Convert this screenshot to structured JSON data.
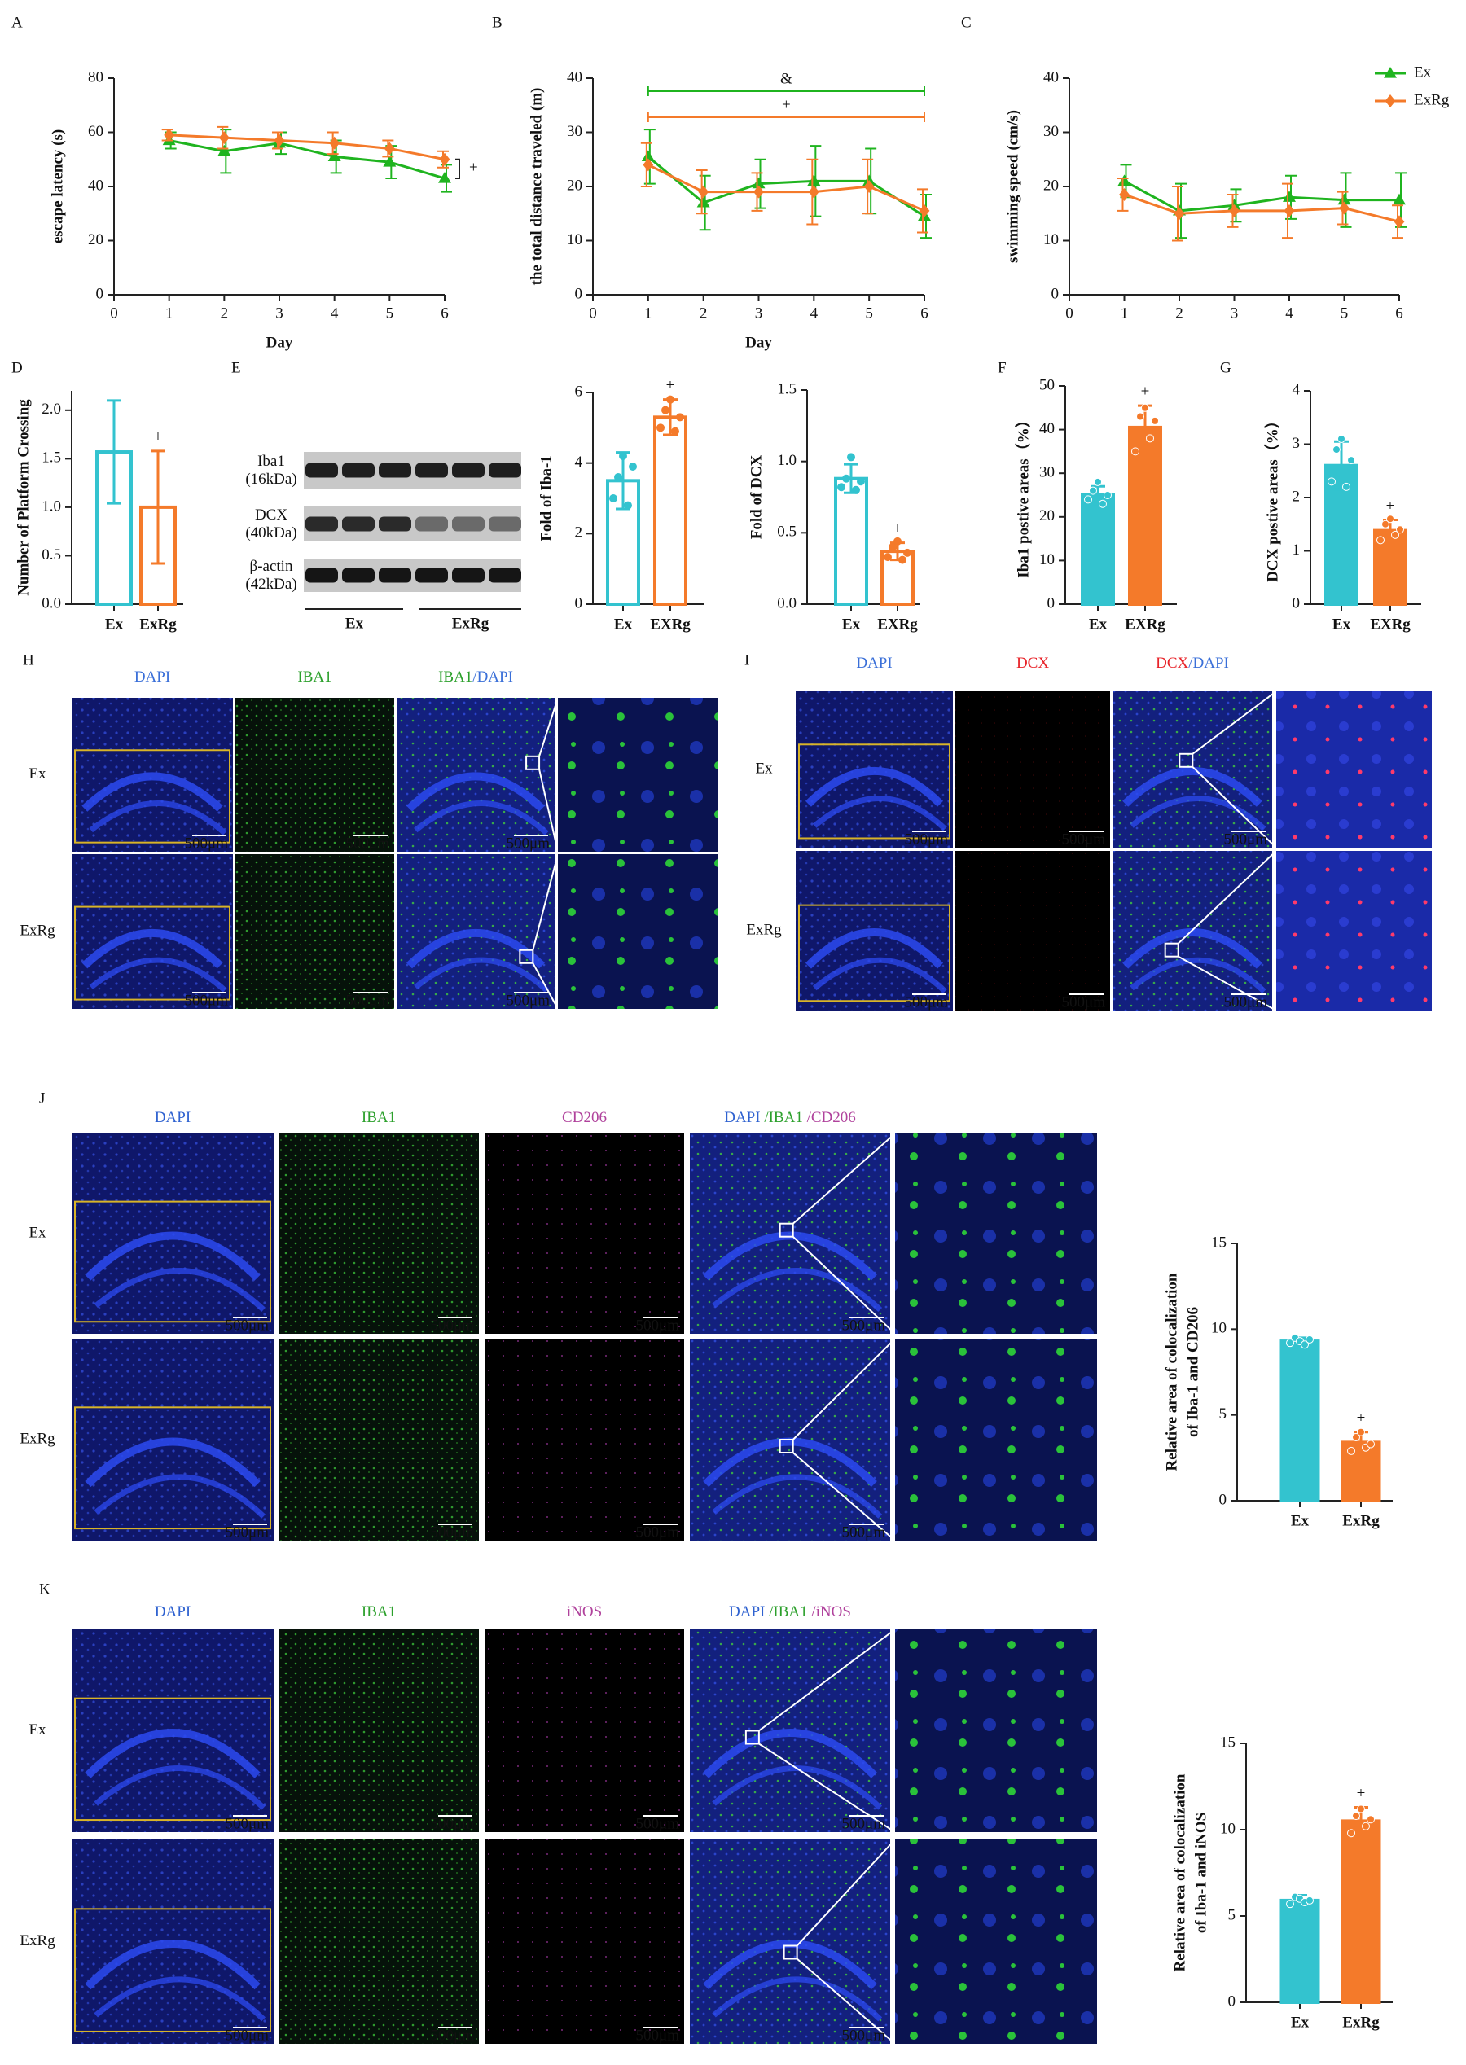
{
  "chart_data": [
    {
      "type": "line",
      "label": "A",
      "xlabel": "Day",
      "ylabel": "escape latency (s)",
      "x": [
        1,
        2,
        3,
        4,
        5,
        6
      ],
      "xlim": [
        0,
        6
      ],
      "xticks": [
        0,
        1,
        2,
        3,
        4,
        5,
        6
      ],
      "ylim": [
        0,
        80
      ],
      "yticks": [
        0,
        20,
        40,
        60,
        80
      ],
      "series": [
        {
          "name": "Ex",
          "color": "#1fb41f",
          "marker": "triangle",
          "values": [
            57,
            53,
            56,
            51,
            49,
            43
          ],
          "errors": [
            3,
            8,
            4,
            6,
            6,
            5
          ]
        },
        {
          "name": "ExRg",
          "color": "#f47a2a",
          "marker": "diamond",
          "values": [
            59,
            58,
            57,
            56,
            54,
            50
          ],
          "errors": [
            2,
            4,
            3,
            4,
            3,
            3
          ]
        }
      ],
      "annotation": "+"
    },
    {
      "type": "line",
      "label": "B",
      "xlabel": "Day",
      "ylabel": "the total distance traveled (m)",
      "x": [
        1,
        2,
        3,
        4,
        5,
        6
      ],
      "xlim": [
        0,
        6
      ],
      "xticks": [
        0,
        1,
        2,
        3,
        4,
        5,
        6
      ],
      "ylim": [
        0,
        40
      ],
      "yticks": [
        0,
        10,
        20,
        30,
        40
      ],
      "series": [
        {
          "name": "Ex",
          "color": "#1fb41f",
          "marker": "triangle",
          "values": [
            25.5,
            17,
            20.5,
            21,
            21,
            14.5
          ],
          "errors": [
            5,
            5,
            4.5,
            6.5,
            6,
            4
          ]
        },
        {
          "name": "ExRg",
          "color": "#f47a2a",
          "marker": "diamond",
          "values": [
            24,
            19,
            19,
            19,
            20,
            15.5
          ],
          "errors": [
            4,
            4,
            3.5,
            6,
            5,
            4
          ]
        }
      ],
      "annotations": [
        {
          "text": "&",
          "color": "#1fb41f"
        },
        {
          "text": "+",
          "color": "#f47a2a"
        }
      ]
    },
    {
      "type": "line",
      "label": "C",
      "ylabel": "swimming speed (cm/s)",
      "x": [
        1,
        2,
        3,
        4,
        5,
        6
      ],
      "xlim": [
        0,
        6
      ],
      "xticks": [
        0,
        1,
        2,
        3,
        4,
        5,
        6
      ],
      "ylim": [
        0,
        40
      ],
      "yticks": [
        0,
        10,
        20,
        30,
        40
      ],
      "series": [
        {
          "name": "Ex",
          "color": "#1fb41f",
          "marker": "triangle",
          "values": [
            21,
            15.5,
            16.5,
            18,
            17.5,
            17.5
          ],
          "errors": [
            3,
            5,
            3,
            4,
            5,
            5
          ]
        },
        {
          "name": "ExRg",
          "color": "#f47a2a",
          "marker": "diamond",
          "values": [
            18.5,
            15,
            15.5,
            15.5,
            16,
            13.5
          ],
          "errors": [
            3,
            5,
            3,
            5,
            3,
            3
          ]
        }
      ],
      "legend": "top-right"
    },
    {
      "type": "bar",
      "label": "D",
      "ylabel": "Number of Platform Crossing",
      "categories": [
        "Ex",
        "ExRg"
      ],
      "colors": [
        "#33c3cf",
        "#f47a2a"
      ],
      "filled": false,
      "values": [
        1.57,
        1.0
      ],
      "errors": [
        0.53,
        0.58
      ],
      "ylim": [
        0,
        2.2
      ],
      "yticks": [
        {
          "value": 0,
          "label": "0.0"
        },
        {
          "value": 0.5,
          "label": "0.5"
        },
        {
          "value": 1,
          "label": "1.0"
        },
        {
          "value": 1.5,
          "label": "1.5"
        },
        {
          "value": 2,
          "label": "2.0"
        }
      ],
      "annotation": "+"
    },
    {
      "type": "bar",
      "ylabel": "Fold of Iba-1",
      "categories": [
        "Ex",
        "EXRg"
      ],
      "colors": [
        "#33c3cf",
        "#f47a2a"
      ],
      "filled": false,
      "values": [
        3.5,
        5.3
      ],
      "errors": [
        0.8,
        0.5
      ],
      "points": [
        [
          3.0,
          3.6,
          4.2,
          2.8,
          3.9
        ],
        [
          5.0,
          5.5,
          5.8,
          4.9,
          5.3
        ]
      ],
      "ylim": [
        0,
        6
      ],
      "yticks": [
        0,
        2,
        4,
        6
      ],
      "annotation": "+"
    },
    {
      "type": "bar",
      "ylabel": "Fold of DCX",
      "categories": [
        "Ex",
        "EXRg"
      ],
      "colors": [
        "#33c3cf",
        "#f47a2a"
      ],
      "filled": false,
      "values": [
        0.88,
        0.37
      ],
      "errors": [
        0.1,
        0.06
      ],
      "points": [
        [
          0.82,
          0.88,
          1.03,
          0.8,
          0.86
        ],
        [
          0.33,
          0.4,
          0.44,
          0.31,
          0.36
        ]
      ],
      "ylim": [
        0,
        1.5
      ],
      "yticks": [
        {
          "value": 0,
          "label": "0.0"
        },
        {
          "value": 0.5,
          "label": "0.5"
        },
        {
          "value": 1,
          "label": "1.0"
        },
        {
          "value": 1.5,
          "label": "1.5"
        }
      ],
      "annotation": "+"
    },
    {
      "type": "bar",
      "label": "F",
      "ylabel": "Iba1 postive areas（%）",
      "categories": [
        "Ex",
        "EXRg"
      ],
      "colors": [
        "#33c3cf",
        "#f47a2a"
      ],
      "filled": true,
      "values": [
        25,
        40.5
      ],
      "errors": [
        2,
        5
      ],
      "points": [
        [
          24,
          26,
          28,
          23,
          25
        ],
        [
          35,
          43,
          45,
          38,
          42
        ]
      ],
      "ylim": [
        0,
        50
      ],
      "yticks": [
        0,
        10,
        20,
        30,
        40,
        50
      ],
      "annotation": "+"
    },
    {
      "type": "bar",
      "label": "G",
      "ylabel": "DCX postive areas（%）",
      "categories": [
        "Ex",
        "EXRg"
      ],
      "colors": [
        "#33c3cf",
        "#f47a2a"
      ],
      "filled": true,
      "values": [
        2.6,
        1.38
      ],
      "errors": [
        0.45,
        0.2
      ],
      "points": [
        [
          2.3,
          2.9,
          3.1,
          2.2,
          2.7
        ],
        [
          1.2,
          1.5,
          1.6,
          1.3,
          1.4
        ]
      ],
      "ylim": [
        0,
        4
      ],
      "yticks": [
        0,
        1,
        2,
        3,
        4
      ],
      "annotation": "+"
    },
    {
      "type": "bar",
      "ylabel": [
        "Relative area of colocalization",
        "of Iba-1 and CD206"
      ],
      "categories": [
        "Ex",
        "ExRg"
      ],
      "colors": [
        "#33c3cf",
        "#f47a2a"
      ],
      "filled": true,
      "values": [
        9.3,
        3.4
      ],
      "errors": [
        0.2,
        0.6
      ],
      "points": [
        [
          9.2,
          9.5,
          9.3,
          9.1,
          9.4
        ],
        [
          2.9,
          3.7,
          4.0,
          3.1,
          3.3
        ]
      ],
      "ylim": [
        0,
        15
      ],
      "yticks": [
        0,
        5,
        10,
        15
      ],
      "annotation": "+"
    },
    {
      "type": "bar",
      "ylabel": [
        "Relative area of colocalization",
        "of Iba-1 and iNOS"
      ],
      "categories": [
        "Ex",
        "ExRg"
      ],
      "colors": [
        "#33c3cf",
        "#f47a2a"
      ],
      "filled": true,
      "values": [
        5.9,
        10.5
      ],
      "errors": [
        0.3,
        0.8
      ],
      "points": [
        [
          5.7,
          6.1,
          6.0,
          5.8,
          5.9
        ],
        [
          9.8,
          10.8,
          11.2,
          10.2,
          10.6
        ]
      ],
      "ylim": [
        0,
        15
      ],
      "yticks": [
        0,
        5,
        10,
        15
      ],
      "annotation": "+"
    }
  ],
  "blot": {
    "label": "E",
    "rows": [
      [
        "Iba1",
        "(16kDa)"
      ],
      [
        "DCX",
        "(40kDa)"
      ],
      [
        "β-actin",
        "(42kDa)"
      ]
    ],
    "groups": [
      "Ex",
      "ExRg"
    ]
  },
  "micrographs": [
    {
      "label": "H",
      "columns": [
        {
          "parts": [
            "DAPI"
          ],
          "colors": [
            "#3a6fd8"
          ]
        },
        {
          "parts": [
            "IBA1"
          ],
          "colors": [
            "#2ca02c"
          ]
        },
        {
          "parts": [
            "IBA1",
            "/DAPI"
          ],
          "colors": [
            "#2ca02c",
            "#3a6fd8"
          ]
        }
      ],
      "rows": [
        "Ex",
        "ExRg"
      ],
      "scale": "500μm"
    },
    {
      "label": "I",
      "columns": [
        {
          "parts": [
            "DAPI"
          ],
          "colors": [
            "#3a6fd8"
          ]
        },
        {
          "parts": [
            "DCX"
          ],
          "colors": [
            "#e8242a"
          ]
        },
        {
          "parts": [
            "DCX",
            "/DAPI"
          ],
          "colors": [
            "#e8242a",
            "#3a6fd8"
          ]
        }
      ],
      "rows": [
        "Ex",
        "ExRg"
      ],
      "scale": "500μm"
    },
    {
      "label": "J",
      "columns": [
        {
          "parts": [
            "DAPI"
          ],
          "colors": [
            "#2f62d0"
          ]
        },
        {
          "parts": [
            "IBA1"
          ],
          "colors": [
            "#2ca02c"
          ]
        },
        {
          "parts": [
            "CD206"
          ],
          "colors": [
            "#b0429c"
          ]
        },
        {
          "parts": [
            "DAPI ",
            "/IBA1 ",
            "/CD206"
          ],
          "colors": [
            "#2f62d0",
            "#2ca02c",
            "#b0429c"
          ]
        }
      ],
      "rows": [
        "Ex",
        "ExRg"
      ],
      "scale": "500μm"
    },
    {
      "label": "K",
      "columns": [
        {
          "parts": [
            "DAPI"
          ],
          "colors": [
            "#2f62d0"
          ]
        },
        {
          "parts": [
            "IBA1"
          ],
          "colors": [
            "#2ca02c"
          ]
        },
        {
          "parts": [
            "iNOS"
          ],
          "colors": [
            "#b0429c"
          ]
        },
        {
          "parts": [
            "DAPI ",
            "/IBA1 ",
            "/iNOS"
          ],
          "colors": [
            "#2f62d0",
            "#2ca02c",
            "#b0429c"
          ]
        }
      ],
      "rows": [
        "Ex",
        "ExRg"
      ],
      "scale": "500μm"
    }
  ]
}
